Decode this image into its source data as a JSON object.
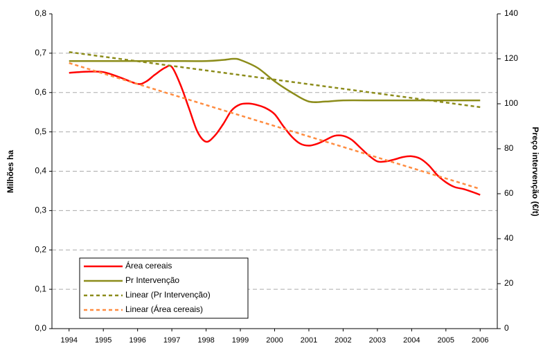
{
  "chart_data": {
    "type": "line",
    "ylabel": "Milhões ha",
    "y2label": "Preço intervenção (€/t)",
    "xlim": [
      1993.5,
      2006.5
    ],
    "xticks": [
      1994,
      1995,
      1996,
      1997,
      1998,
      1999,
      2000,
      2001,
      2002,
      2003,
      2004,
      2005,
      2006
    ],
    "ylim": [
      0,
      0.8
    ],
    "yticks": [
      {
        "value": 0,
        "label": "0,0"
      },
      {
        "value": 0.1,
        "label": "0,1"
      },
      {
        "value": 0.2,
        "label": "0,2"
      },
      {
        "value": 0.3,
        "label": "0,3"
      },
      {
        "value": 0.4,
        "label": "0,4"
      },
      {
        "value": 0.5,
        "label": "0,5"
      },
      {
        "value": 0.6,
        "label": "0,6"
      },
      {
        "value": 0.7,
        "label": "0,7"
      },
      {
        "value": 0.8,
        "label": "0,8"
      }
    ],
    "y2lim": [
      0,
      140
    ],
    "y2ticks": [
      0,
      20,
      40,
      60,
      80,
      100,
      120,
      140
    ],
    "grid": true,
    "legend": "lower left",
    "series": [
      {
        "name": "Área cereais",
        "color": "#ff0000",
        "style": "solid",
        "axis": "y",
        "x": [
          1994,
          1994.5,
          1995,
          1995.5,
          1996,
          1996.25,
          1996.5,
          1996.8,
          1997,
          1997.25,
          1997.5,
          1997.75,
          1998,
          1998.25,
          1998.5,
          1998.75,
          1999,
          1999.25,
          1999.5,
          1999.75,
          2000,
          2000.25,
          2000.5,
          2000.75,
          2001,
          2001.25,
          2001.5,
          2001.75,
          2002,
          2002.25,
          2002.5,
          2002.75,
          2003,
          2003.25,
          2003.5,
          2003.75,
          2004,
          2004.25,
          2004.5,
          2004.75,
          2005,
          2005.25,
          2005.5,
          2005.75,
          2006
        ],
        "values": [
          0.65,
          0.653,
          0.652,
          0.638,
          0.622,
          0.628,
          0.645,
          0.663,
          0.665,
          0.62,
          0.56,
          0.5,
          0.475,
          0.49,
          0.52,
          0.555,
          0.57,
          0.572,
          0.568,
          0.56,
          0.545,
          0.515,
          0.488,
          0.47,
          0.465,
          0.47,
          0.48,
          0.49,
          0.49,
          0.48,
          0.46,
          0.44,
          0.425,
          0.425,
          0.43,
          0.436,
          0.438,
          0.432,
          0.415,
          0.39,
          0.372,
          0.36,
          0.355,
          0.348,
          0.34
        ]
      },
      {
        "name": "Pr Intervenção",
        "color": "#8c8c1a",
        "style": "solid",
        "axis": "y2",
        "x": [
          1994,
          1995,
          1996,
          1997,
          1998,
          1998.5,
          1998.8,
          1999,
          1999.5,
          2000,
          2000.5,
          2001,
          2001.5,
          2002,
          2003,
          2004,
          2005,
          2006
        ],
        "values": [
          119,
          119,
          119,
          119,
          119,
          119.5,
          120,
          119.5,
          116,
          110,
          105,
          101,
          101,
          101.5,
          101.5,
          101.5,
          101.5,
          101.5
        ]
      },
      {
        "name": "Linear (Pr Intervenção)",
        "color": "#8c8c1a",
        "style": "dashed",
        "axis": "y2",
        "x": [
          1994,
          2006
        ],
        "values": [
          123,
          98.5
        ]
      },
      {
        "name": "Linear (Área cereais)",
        "color": "#ff8c40",
        "style": "dashed",
        "axis": "y",
        "x": [
          1994,
          2006
        ],
        "values": [
          0.675,
          0.355
        ]
      }
    ]
  }
}
